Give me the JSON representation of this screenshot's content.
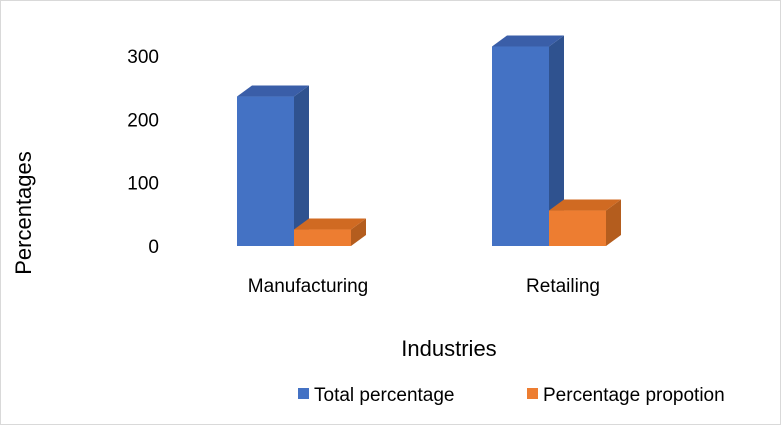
{
  "chart_data": {
    "type": "bar",
    "style": "3d-clustered-column",
    "categories": [
      "Manufacturing",
      "Retailing"
    ],
    "series": [
      {
        "name": "Total percentage",
        "values": [
          236,
          315
        ],
        "color": "#4472c4",
        "side_color": "#2f528f",
        "top_color": "#3a5ea8"
      },
      {
        "name": "Percentage propotion",
        "values": [
          26,
          56
        ],
        "color": "#ed7d31",
        "side_color": "#b45d1e",
        "top_color": "#d06a22"
      }
    ],
    "xlabel": "Industries",
    "ylabel": "Percentages",
    "ylim": [
      0,
      300
    ],
    "yticks": [
      "0",
      "100",
      "200",
      "300"
    ],
    "grid": false,
    "legend_position": "bottom"
  }
}
